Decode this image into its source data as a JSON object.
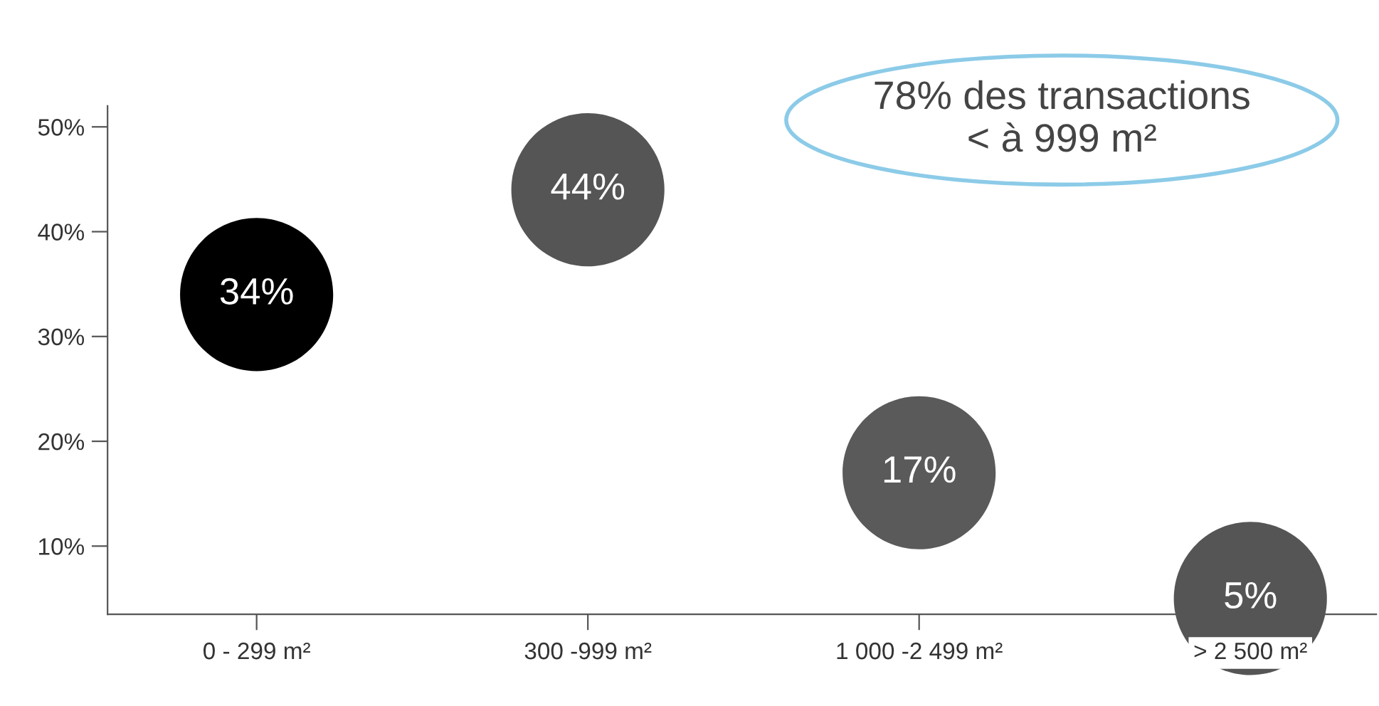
{
  "chart_data": {
    "type": "scatter",
    "categories": [
      "0 - 299 m²",
      "300 -999 m²",
      "1 000 -2 499 m²",
      "> 2 500 m²"
    ],
    "values": [
      34,
      44,
      17,
      5
    ],
    "colors": [
      "#000000",
      "#555555",
      "#5a5a5a",
      "#555555"
    ],
    "marker": "circle",
    "data_labels": true,
    "value_labels": [
      "34%",
      "44%",
      "17%",
      "5%"
    ],
    "ylim": [
      3.5,
      52
    ],
    "yticks": [
      {
        "value": 10,
        "label": "10%"
      },
      {
        "value": 20,
        "label": "20%"
      },
      {
        "value": 30,
        "label": "30%"
      },
      {
        "value": 40,
        "label": "40%"
      },
      {
        "value": 50,
        "label": "50%"
      }
    ],
    "grid": false,
    "annotations": [
      "78% des transactions\n< à 999 m²"
    ]
  }
}
